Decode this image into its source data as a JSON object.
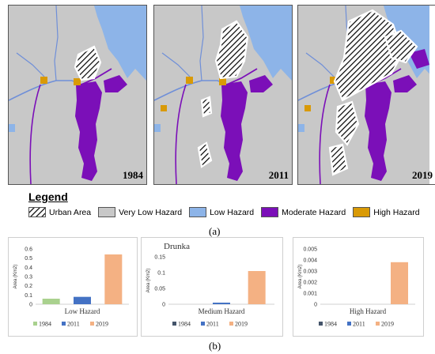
{
  "maps": [
    {
      "year": "1984"
    },
    {
      "year": "2011"
    },
    {
      "year": "2019"
    }
  ],
  "legend": {
    "title": "Legend",
    "items": [
      {
        "label": "Urban Area",
        "kind": "hatch",
        "color": "#ffffff"
      },
      {
        "label": "Very Low Hazard",
        "kind": "fill",
        "color": "#c8c8c8"
      },
      {
        "label": "Low Hazard",
        "kind": "fill",
        "color": "#8db4e8"
      },
      {
        "label": "Moderate Hazard",
        "kind": "fill",
        "color": "#7b0fb8"
      },
      {
        "label": "High Hazard",
        "kind": "fill",
        "color": "#d99a06"
      }
    ]
  },
  "captions": {
    "a": "(a)",
    "b": "(b)"
  },
  "colors": {
    "map_bg": "#ffffff",
    "very_low": "#c8c8c8",
    "low": "#8db4e8",
    "moderate": "#7b0fb8",
    "high": "#d99a06",
    "urban_outline": "#ffffff",
    "river": "#6f8fd8"
  },
  "chart_data": [
    {
      "type": "bar",
      "title": "",
      "xlabel": "Low Hazard",
      "ylabel": "Area (Km2)",
      "ylim": [
        0,
        0.6
      ],
      "yticks": [
        "0",
        "0.1",
        "0.2",
        "0.3",
        "0.4",
        "0.5",
        "0.6"
      ],
      "categories": [
        "1984",
        "2011",
        "2019"
      ],
      "values": [
        0.06,
        0.08,
        0.54
      ],
      "colors": [
        "#a9d18e",
        "#4472c4",
        "#f4b183"
      ],
      "legend": [
        "1984",
        "2011",
        "2019"
      ]
    },
    {
      "type": "bar",
      "title": "Drunka",
      "xlabel": "Medium Hazard",
      "ylabel": "Area (Km2)",
      "ylim": [
        0,
        0.15
      ],
      "yticks": [
        "0",
        "0.05",
        "0.1",
        "0.15"
      ],
      "categories": [
        "1984",
        "2011",
        "2019"
      ],
      "values": [
        0,
        0.005,
        0.105
      ],
      "colors": [
        "#44546a",
        "#4472c4",
        "#f4b183"
      ],
      "legend": [
        "1984",
        "2011",
        "2019"
      ]
    },
    {
      "type": "bar",
      "title": "",
      "xlabel": "High Hazard",
      "ylabel": "Area (Km2)",
      "ylim": [
        0,
        0.005
      ],
      "yticks": [
        "0",
        "0.001",
        "0.002",
        "0.003",
        "0.004",
        "0.005"
      ],
      "categories": [
        "1984",
        "2011",
        "2019"
      ],
      "values": [
        0,
        0,
        0.0038
      ],
      "colors": [
        "#44546a",
        "#4472c4",
        "#f4b183"
      ],
      "legend": [
        "1984",
        "2011",
        "2019"
      ]
    }
  ]
}
